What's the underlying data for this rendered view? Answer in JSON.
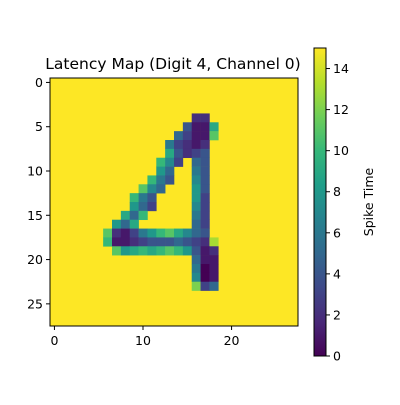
{
  "chart_data": {
    "type": "heatmap",
    "title": "Latency Map (Digit 4, Channel 0)",
    "rows": 28,
    "cols": 28,
    "background_value": 15,
    "xlim": [
      -0.5,
      27.5
    ],
    "ylim": [
      27.5,
      -0.5
    ],
    "x_ticks": [
      0,
      10,
      20
    ],
    "y_ticks": [
      0,
      5,
      10,
      15,
      20,
      25
    ],
    "colorbar": {
      "label": "Spike Time",
      "range": [
        0,
        15
      ],
      "ticks": [
        0,
        2,
        4,
        6,
        8,
        10,
        12,
        14
      ],
      "colormap": "viridis",
      "stops": [
        "#440154",
        "#482878",
        "#3e4989",
        "#31688e",
        "#26828e",
        "#1f9e89",
        "#35b779",
        "#6ece58",
        "#b5de2b",
        "#fde725"
      ]
    },
    "cells": [
      [
        4,
        16,
        2
      ],
      [
        4,
        17,
        2
      ],
      [
        5,
        15,
        4
      ],
      [
        5,
        16,
        1
      ],
      [
        5,
        17,
        1
      ],
      [
        5,
        18,
        9
      ],
      [
        6,
        14,
        5
      ],
      [
        6,
        15,
        3
      ],
      [
        6,
        16,
        1
      ],
      [
        6,
        17,
        1
      ],
      [
        6,
        18,
        11
      ],
      [
        7,
        13,
        6
      ],
      [
        7,
        14,
        3
      ],
      [
        7,
        15,
        2
      ],
      [
        7,
        16,
        1
      ],
      [
        7,
        17,
        2
      ],
      [
        8,
        13,
        9
      ],
      [
        8,
        14,
        4
      ],
      [
        8,
        15,
        2
      ],
      [
        8,
        16,
        3
      ],
      [
        8,
        17,
        4
      ],
      [
        9,
        12,
        10
      ],
      [
        9,
        13,
        7
      ],
      [
        9,
        14,
        3
      ],
      [
        9,
        16,
        5
      ],
      [
        9,
        17,
        4
      ],
      [
        10,
        12,
        8
      ],
      [
        10,
        13,
        5
      ],
      [
        10,
        16,
        6
      ],
      [
        10,
        17,
        4
      ],
      [
        11,
        11,
        10
      ],
      [
        11,
        12,
        6
      ],
      [
        11,
        13,
        4
      ],
      [
        11,
        16,
        7
      ],
      [
        11,
        17,
        4
      ],
      [
        12,
        10,
        11
      ],
      [
        12,
        11,
        7
      ],
      [
        12,
        12,
        5
      ],
      [
        12,
        16,
        8
      ],
      [
        12,
        17,
        4
      ],
      [
        13,
        9,
        10
      ],
      [
        13,
        10,
        6
      ],
      [
        13,
        11,
        4
      ],
      [
        13,
        16,
        8
      ],
      [
        13,
        17,
        3
      ],
      [
        14,
        9,
        8
      ],
      [
        14,
        10,
        5
      ],
      [
        14,
        11,
        3
      ],
      [
        14,
        16,
        7
      ],
      [
        14,
        17,
        3
      ],
      [
        15,
        8,
        9
      ],
      [
        15,
        9,
        5
      ],
      [
        15,
        10,
        10
      ],
      [
        15,
        16,
        6
      ],
      [
        15,
        17,
        3
      ],
      [
        16,
        7,
        8
      ],
      [
        16,
        8,
        5
      ],
      [
        16,
        9,
        9
      ],
      [
        16,
        16,
        5
      ],
      [
        16,
        17,
        3
      ],
      [
        17,
        6,
        11
      ],
      [
        17,
        7,
        2
      ],
      [
        17,
        8,
        1
      ],
      [
        17,
        9,
        3
      ],
      [
        17,
        10,
        6
      ],
      [
        17,
        11,
        8
      ],
      [
        17,
        12,
        10
      ],
      [
        17,
        13,
        11
      ],
      [
        17,
        14,
        9
      ],
      [
        17,
        15,
        7
      ],
      [
        17,
        16,
        5
      ],
      [
        17,
        17,
        4
      ],
      [
        18,
        6,
        10
      ],
      [
        18,
        7,
        1
      ],
      [
        18,
        8,
        1
      ],
      [
        18,
        9,
        2
      ],
      [
        18,
        10,
        3
      ],
      [
        18,
        11,
        4
      ],
      [
        18,
        12,
        4
      ],
      [
        18,
        13,
        4
      ],
      [
        18,
        14,
        5
      ],
      [
        18,
        15,
        4
      ],
      [
        18,
        16,
        3
      ],
      [
        18,
        17,
        2
      ],
      [
        18,
        18,
        13
      ],
      [
        19,
        7,
        11
      ],
      [
        19,
        8,
        8
      ],
      [
        19,
        9,
        9
      ],
      [
        19,
        10,
        10
      ],
      [
        19,
        11,
        9
      ],
      [
        19,
        12,
        10
      ],
      [
        19,
        13,
        11
      ],
      [
        19,
        14,
        10
      ],
      [
        19,
        15,
        8
      ],
      [
        19,
        16,
        4
      ],
      [
        19,
        17,
        1
      ],
      [
        19,
        18,
        2
      ],
      [
        20,
        16,
        5
      ],
      [
        20,
        17,
        1
      ],
      [
        20,
        18,
        1
      ],
      [
        21,
        16,
        6
      ],
      [
        21,
        17,
        0
      ],
      [
        21,
        18,
        1
      ],
      [
        22,
        16,
        7
      ],
      [
        22,
        17,
        0
      ],
      [
        22,
        18,
        1
      ],
      [
        23,
        16,
        12
      ],
      [
        23,
        17,
        3
      ],
      [
        23,
        18,
        5
      ]
    ]
  }
}
